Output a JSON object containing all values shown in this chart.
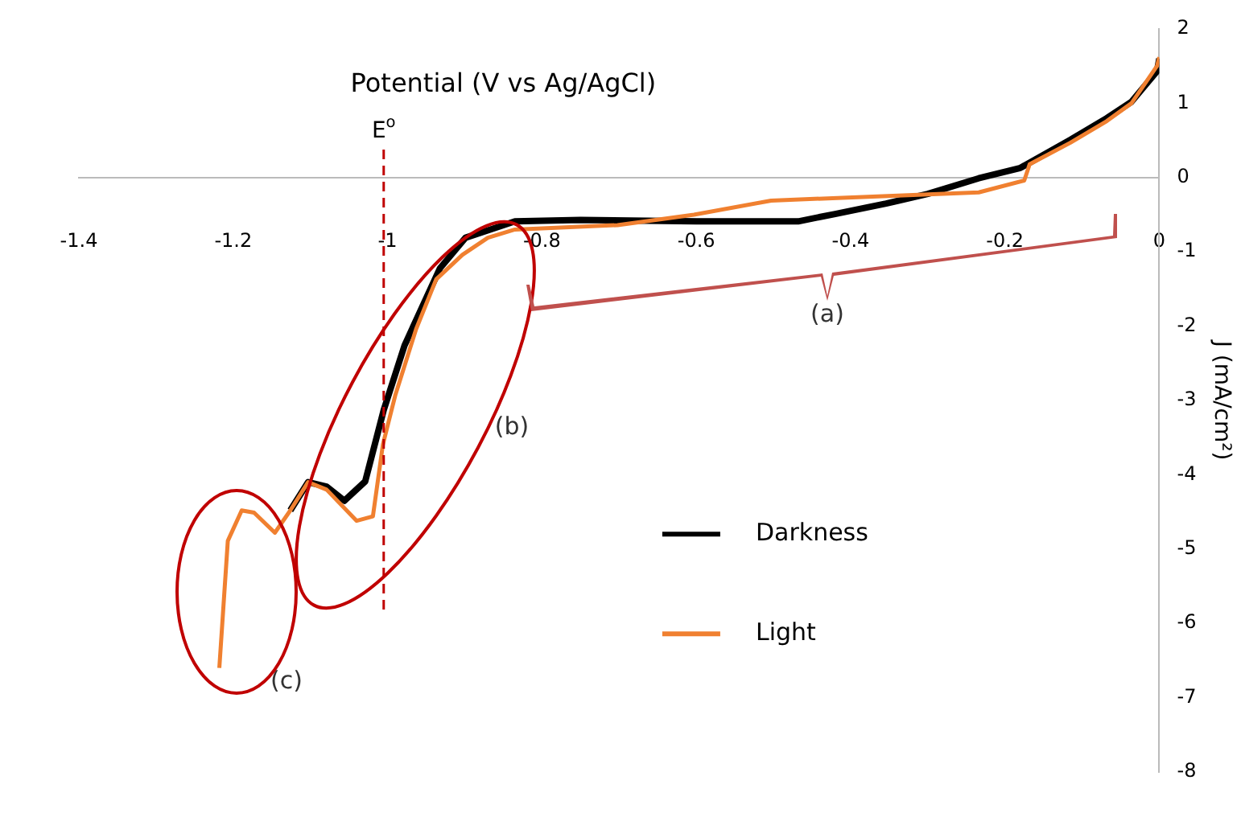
{
  "chart_data": {
    "type": "line",
    "xlabel": "Potential (V vs Ag/AgCl)",
    "ylabel": "J (mA/cm²)",
    "xlim": [
      -1.4,
      0
    ],
    "xticks": [
      -1.4,
      -1.2,
      {
        "value": -1,
        "label": "-1"
      },
      -0.8,
      -0.6,
      -0.4,
      -0.2,
      0
    ],
    "ylim": [
      -8,
      2
    ],
    "yticks": [
      -8,
      -7,
      -6,
      -5,
      -4,
      -3,
      -2,
      -1,
      0,
      1,
      2
    ],
    "series": [
      {
        "name": "Darkness",
        "color": "#000000",
        "x": [
          -1.126,
          -1.103,
          -1.079,
          -1.056,
          -1.029,
          -1.005,
          -0.978,
          -0.952,
          -0.932,
          -0.899,
          -0.867,
          -0.835,
          -0.75,
          -0.6,
          -0.468,
          -0.42,
          -0.354,
          -0.3,
          -0.234,
          -0.18,
          -0.115,
          -0.068,
          -0.036,
          -0.003,
          0
        ],
        "values": [
          -4.48,
          -4.1,
          -4.16,
          -4.35,
          -4.09,
          -3.13,
          -2.26,
          -1.67,
          -1.22,
          -0.81,
          -0.7,
          -0.59,
          -0.57,
          -0.59,
          -0.59,
          -0.49,
          -0.35,
          -0.22,
          -0.01,
          0.13,
          0.51,
          0.8,
          1.02,
          1.43,
          1.6
        ]
      },
      {
        "name": "Light",
        "color": "#f08030",
        "x": [
          -1.218,
          -1.207,
          -1.189,
          -1.173,
          -1.146,
          -1.126,
          -1.103,
          -1.079,
          -1.04,
          -1.019,
          -1.006,
          -0.99,
          -0.963,
          -0.937,
          -0.903,
          -0.87,
          -0.835,
          -0.702,
          -0.603,
          -0.503,
          -0.404,
          -0.234,
          -0.175,
          -0.168,
          -0.115,
          -0.068,
          -0.036,
          -0.003,
          0
        ],
        "values": [
          -6.6,
          -4.89,
          -4.48,
          -4.51,
          -4.78,
          -4.48,
          -4.1,
          -4.2,
          -4.62,
          -4.56,
          -3.59,
          -2.93,
          -2.04,
          -1.37,
          -1.04,
          -0.81,
          -0.7,
          -0.64,
          -0.5,
          -0.31,
          -0.27,
          -0.2,
          -0.04,
          0.18,
          0.47,
          0.76,
          1.0,
          1.5,
          1.62
        ]
      }
    ],
    "ref_lines": [
      {
        "axis": "x",
        "value": -1.005,
        "label": "E$^{o}$",
        "color": "#c00000",
        "line_style": "dashed"
      }
    ],
    "annotations": [
      "(a)",
      "(b)",
      "(c)"
    ],
    "legend": "right",
    "marker": "none",
    "line_style": "solid"
  }
}
